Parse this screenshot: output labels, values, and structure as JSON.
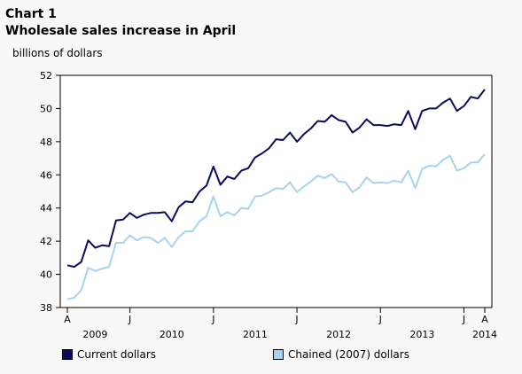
{
  "header": {
    "chart_number": "Chart 1",
    "title": "Wholesale sales increase in April",
    "unit": "billions of dollars"
  },
  "colors": {
    "current": "#0a0a60",
    "chained": "#a6d3f0",
    "frame": "#000000"
  },
  "chart_data": {
    "type": "line",
    "title": "Wholesale sales increase in April",
    "ylabel": "billions of dollars",
    "xlabel": "",
    "ylim": [
      38,
      52
    ],
    "yticks": [
      38,
      40,
      42,
      44,
      46,
      48,
      50,
      52
    ],
    "grid": false,
    "legend_position": "bottom",
    "x_start": "2009-04",
    "x_end": "2014-04",
    "month_ticks": [
      {
        "label": "A",
        "index": 0
      },
      {
        "label": "J",
        "index": 9
      },
      {
        "label": "J",
        "index": 21
      },
      {
        "label": "J",
        "index": 33
      },
      {
        "label": "J",
        "index": 45
      },
      {
        "label": "J",
        "index": 57
      },
      {
        "label": "A",
        "index": 60
      }
    ],
    "year_labels": [
      {
        "label": "2009",
        "index": 4
      },
      {
        "label": "2010",
        "index": 15
      },
      {
        "label": "2011",
        "index": 27
      },
      {
        "label": "2012",
        "index": 39
      },
      {
        "label": "2013",
        "index": 51
      },
      {
        "label": "2014",
        "index": 60
      }
    ],
    "series": [
      {
        "name": "Current dollars",
        "values": [
          40.55,
          40.45,
          40.75,
          42.05,
          41.6,
          41.75,
          41.7,
          43.25,
          43.3,
          43.7,
          43.4,
          43.6,
          43.7,
          43.7,
          43.75,
          43.2,
          44.05,
          44.4,
          44.35,
          45.0,
          45.35,
          46.5,
          45.4,
          45.9,
          45.75,
          46.25,
          46.4,
          47.05,
          47.3,
          47.6,
          48.15,
          48.1,
          48.55,
          48.0,
          48.45,
          48.8,
          49.25,
          49.2,
          49.6,
          49.3,
          49.2,
          48.55,
          48.85,
          49.35,
          49.0,
          49.0,
          48.95,
          49.05,
          49.0,
          49.85,
          48.75,
          49.85,
          50.0,
          50.0,
          50.35,
          50.6,
          49.85,
          50.15,
          50.7,
          50.6,
          51.15
        ]
      },
      {
        "name": "Chained (2007) dollars",
        "values": [
          38.5,
          38.6,
          39.05,
          40.4,
          40.2,
          40.35,
          40.45,
          41.9,
          41.9,
          42.35,
          42.05,
          42.25,
          42.2,
          41.9,
          42.2,
          41.65,
          42.25,
          42.6,
          42.6,
          43.2,
          43.5,
          44.7,
          43.5,
          43.75,
          43.55,
          44.0,
          43.95,
          44.7,
          44.75,
          44.95,
          45.2,
          45.15,
          45.55,
          44.95,
          45.3,
          45.6,
          45.95,
          45.8,
          46.05,
          45.6,
          45.55,
          44.95,
          45.25,
          45.85,
          45.5,
          45.55,
          45.5,
          45.65,
          45.55,
          46.25,
          45.2,
          46.35,
          46.55,
          46.5,
          46.9,
          47.15,
          46.25,
          46.4,
          46.75,
          46.75,
          47.25
        ]
      }
    ]
  }
}
